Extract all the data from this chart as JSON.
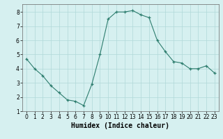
{
  "x": [
    0,
    1,
    2,
    3,
    4,
    5,
    6,
    7,
    8,
    9,
    10,
    11,
    12,
    13,
    14,
    15,
    16,
    17,
    18,
    19,
    20,
    21,
    22,
    23
  ],
  "y": [
    4.7,
    4.0,
    3.5,
    2.8,
    2.3,
    1.8,
    1.7,
    1.4,
    2.9,
    5.0,
    7.5,
    8.0,
    8.0,
    8.1,
    7.8,
    7.6,
    6.0,
    5.2,
    4.5,
    4.4,
    4.0,
    4.0,
    4.2,
    3.7
  ],
  "xlabel": "Humidex (Indice chaleur)",
  "line_color": "#2d7d6e",
  "marker": "+",
  "bg_color": "#d6f0f0",
  "grid_color": "#b0d8d8",
  "xlim": [
    -0.5,
    23.5
  ],
  "ylim": [
    1.0,
    8.55
  ],
  "yticks": [
    1,
    2,
    3,
    4,
    5,
    6,
    7,
    8
  ],
  "xticks": [
    0,
    1,
    2,
    3,
    4,
    5,
    6,
    7,
    8,
    9,
    10,
    11,
    12,
    13,
    14,
    15,
    16,
    17,
    18,
    19,
    20,
    21,
    22,
    23
  ],
  "tick_fontsize": 5.5,
  "xlabel_fontsize": 7
}
